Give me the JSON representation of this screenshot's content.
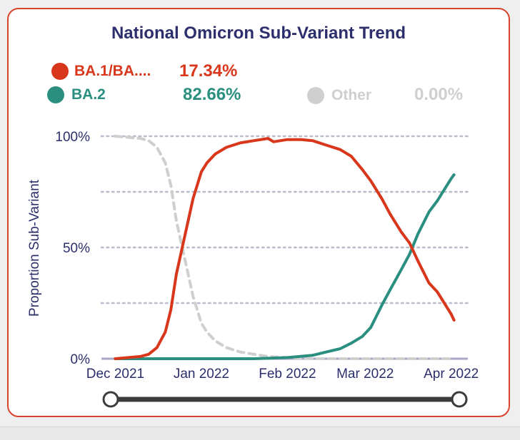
{
  "title": "National Omicron Sub-Variant Trend",
  "legend": [
    {
      "label": "BA.1/BA....",
      "value": "17.34%",
      "color": "#d9371c"
    },
    {
      "label": "BA.2",
      "value": "82.66%",
      "color": "#2b8f80"
    },
    {
      "label": "Other",
      "value": "0.00%",
      "color": "#cfcfcf"
    }
  ],
  "chart_data": {
    "type": "line",
    "ylabel": "Proportion Sub-Variant",
    "xlabel": "",
    "ylim": [
      0,
      100
    ],
    "xlim": [
      "2021-11-26",
      "2022-04-07"
    ],
    "y_ticks": [
      {
        "value": 0,
        "label": "0%"
      },
      {
        "value": 50,
        "label": "50%"
      },
      {
        "value": 100,
        "label": "100%"
      }
    ],
    "gridlines": [
      100,
      75,
      50,
      25
    ],
    "x_ticks": [
      {
        "date": "2021-12-01",
        "label": "Dec 2021"
      },
      {
        "date": "2022-01-01",
        "label": "Jan 2022"
      },
      {
        "date": "2022-02-01",
        "label": "Feb 2022"
      },
      {
        "date": "2022-03-01",
        "label": "Mar 2022"
      },
      {
        "date": "2022-04-01",
        "label": "Apr 2022"
      }
    ],
    "grid": true,
    "series": [
      {
        "name": "BA.1/BA....",
        "color": "#d9371c",
        "style": "solid",
        "points": [
          [
            "2021-12-01",
            0
          ],
          [
            "2021-12-10",
            1
          ],
          [
            "2021-12-13",
            2
          ],
          [
            "2021-12-16",
            5
          ],
          [
            "2021-12-19",
            12
          ],
          [
            "2021-12-21",
            22
          ],
          [
            "2021-12-23",
            38
          ],
          [
            "2021-12-26",
            55
          ],
          [
            "2021-12-29",
            72
          ],
          [
            "2022-01-01",
            84
          ],
          [
            "2022-01-03",
            88
          ],
          [
            "2022-01-06",
            92
          ],
          [
            "2022-01-10",
            95
          ],
          [
            "2022-01-15",
            97
          ],
          [
            "2022-01-20",
            98
          ],
          [
            "2022-01-25",
            99
          ],
          [
            "2022-01-27",
            97.5
          ],
          [
            "2022-02-01",
            98.5
          ],
          [
            "2022-02-06",
            98.5
          ],
          [
            "2022-02-10",
            98
          ],
          [
            "2022-02-15",
            96
          ],
          [
            "2022-02-20",
            94
          ],
          [
            "2022-02-24",
            91
          ],
          [
            "2022-02-28",
            85
          ],
          [
            "2022-03-03",
            80
          ],
          [
            "2022-03-07",
            72
          ],
          [
            "2022-03-10",
            65
          ],
          [
            "2022-03-14",
            57
          ],
          [
            "2022-03-17",
            52
          ],
          [
            "2022-03-20",
            44
          ],
          [
            "2022-03-24",
            34
          ],
          [
            "2022-03-27",
            30
          ],
          [
            "2022-03-30",
            24
          ],
          [
            "2022-04-01",
            20
          ],
          [
            "2022-04-02",
            17.34
          ]
        ]
      },
      {
        "name": "BA.2",
        "color": "#2b8f80",
        "style": "solid",
        "points": [
          [
            "2021-12-01",
            0
          ],
          [
            "2022-01-20",
            0
          ],
          [
            "2022-02-01",
            0.5
          ],
          [
            "2022-02-10",
            1.5
          ],
          [
            "2022-02-15",
            3
          ],
          [
            "2022-02-20",
            4.5
          ],
          [
            "2022-02-24",
            7
          ],
          [
            "2022-02-28",
            10
          ],
          [
            "2022-03-03",
            14
          ],
          [
            "2022-03-07",
            24
          ],
          [
            "2022-03-10",
            31
          ],
          [
            "2022-03-14",
            40
          ],
          [
            "2022-03-17",
            47
          ],
          [
            "2022-03-20",
            56
          ],
          [
            "2022-03-24",
            66
          ],
          [
            "2022-03-27",
            71
          ],
          [
            "2022-03-30",
            77
          ],
          [
            "2022-04-01",
            81
          ],
          [
            "2022-04-02",
            82.66
          ]
        ]
      },
      {
        "name": "Other",
        "color": "#cfcfcf",
        "style": "dashed",
        "points": [
          [
            "2021-12-01",
            100
          ],
          [
            "2021-12-10",
            99
          ],
          [
            "2021-12-13",
            98
          ],
          [
            "2021-12-16",
            95
          ],
          [
            "2021-12-19",
            88
          ],
          [
            "2021-12-21",
            78
          ],
          [
            "2021-12-23",
            62
          ],
          [
            "2021-12-26",
            45
          ],
          [
            "2021-12-29",
            28
          ],
          [
            "2022-01-01",
            16
          ],
          [
            "2022-01-03",
            12
          ],
          [
            "2022-01-06",
            8
          ],
          [
            "2022-01-10",
            5
          ],
          [
            "2022-01-15",
            3
          ],
          [
            "2022-01-20",
            2
          ],
          [
            "2022-01-25",
            1
          ],
          [
            "2022-02-01",
            0.5
          ],
          [
            "2022-02-10",
            0
          ],
          [
            "2022-04-02",
            0
          ]
        ]
      }
    ]
  },
  "range_slider": {
    "start": 0,
    "end": 100
  }
}
